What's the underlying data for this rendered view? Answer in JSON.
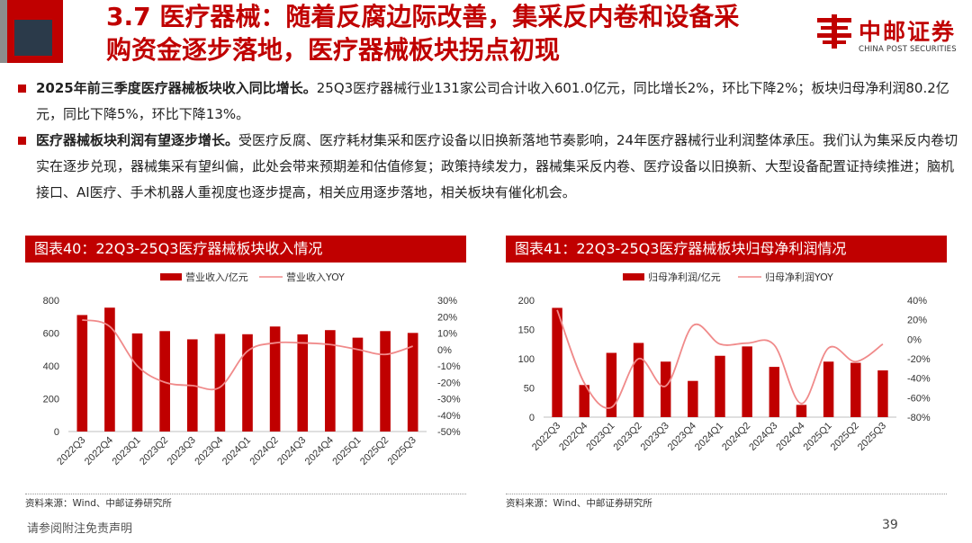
{
  "header": {
    "title_line1": "3.7 医疗器械：随着反腐边际改善，集采反内卷和设备采",
    "title_line2": "购资金逐步落地，医疗器械板块拐点初现"
  },
  "logo": {
    "name_cn": "中邮证券",
    "name_en": "CHINA POST SECURITIES"
  },
  "bullets": [
    {
      "bold": "2025年前三季度医疗器械板块收入同比增长。",
      "text": "25Q3医疗器械行业131家公司合计收入601.0亿元，同比增长2%，环比下降2%；板块归母净利润80.2亿元，同比下降5%，环比下降13%。"
    },
    {
      "bold": "医疗器械板块利润有望逐步增长。",
      "text": "受医疗反腐、医疗耗材集采和医疗设备以旧换新落地节奏影响，24年医疗器械行业利润整体承压。我们认为集采反内卷切实在逐步兑现，器械集采有望纠偏，此处会带来预期差和估值修复；政策持续发力，器械集采反内卷、医疗设备以旧换新、大型设备配置证持续推进；脑机接口、AI医疗、手术机器人重视度也逐步提高，相关应用逐步落地，相关板块有催化机会。"
    }
  ],
  "panels": [
    {
      "title": "图表40：22Q3-25Q3医疗器械板块收入情况",
      "source": "资料来源：Wind、中邮证券研究所"
    },
    {
      "title": "图表41：22Q3-25Q3医疗器械板块归母净利润情况",
      "source": "资料来源：Wind、中邮证券研究所"
    }
  ],
  "footer": {
    "disclaimer": "请参阅附注免责声明",
    "page": "39"
  },
  "colors": {
    "brand_red": "#c00000",
    "bar_red": "#c00000",
    "line_pink": "#f08a8a"
  },
  "chart_data": [
    {
      "type": "bar",
      "categories": [
        "2022Q3",
        "2022Q4",
        "2023Q1",
        "2023Q2",
        "2023Q3",
        "2023Q4",
        "2024Q1",
        "2024Q2",
        "2024Q3",
        "2024Q4",
        "2025Q1",
        "2025Q2",
        "2025Q3"
      ],
      "series": [
        {
          "name": "营业收入/亿元",
          "type": "bar",
          "axis": "left",
          "values": [
            710,
            755,
            598,
            612,
            562,
            595,
            593,
            640,
            592,
            618,
            572,
            612,
            601
          ]
        },
        {
          "name": "营业收入YOY",
          "type": "line",
          "axis": "right",
          "values": [
            18,
            14,
            -10,
            -20,
            -22,
            -23,
            -1,
            4,
            4,
            3,
            0,
            -3,
            2
          ]
        }
      ],
      "ylim_left": [
        0,
        800
      ],
      "yticks_left": [
        "0",
        "200",
        "400",
        "600",
        "800"
      ],
      "ylim_right": [
        -50,
        30
      ],
      "yticks_right": [
        "-50%",
        "-40%",
        "-30%",
        "-20%",
        "-10%",
        "0%",
        "10%",
        "20%",
        "30%"
      ],
      "legend": "top"
    },
    {
      "type": "bar",
      "categories": [
        "2022Q3",
        "2022Q4",
        "2023Q1",
        "2023Q2",
        "2023Q3",
        "2023Q4",
        "2024Q1",
        "2024Q2",
        "2024Q3",
        "2024Q4",
        "2025Q1",
        "2025Q2",
        "2025Q3"
      ],
      "series": [
        {
          "name": "归母净利润/亿元",
          "type": "bar",
          "axis": "left",
          "values": [
            187,
            55,
            110,
            127,
            95,
            62,
            105,
            121,
            86,
            21,
            95,
            93,
            80
          ]
        },
        {
          "name": "归母净利润YOY",
          "type": "line",
          "axis": "right",
          "values": [
            30,
            -45,
            -70,
            -20,
            -48,
            14,
            -5,
            -4,
            -6,
            -66,
            -9,
            -23,
            -5
          ]
        }
      ],
      "ylim_left": [
        0,
        200
      ],
      "yticks_left": [
        "0",
        "50",
        "100",
        "150",
        "200"
      ],
      "ylim_right": [
        -80,
        40
      ],
      "yticks_right": [
        "-80%",
        "-60%",
        "-40%",
        "-20%",
        "0%",
        "20%",
        "40%"
      ],
      "legend": "top"
    }
  ]
}
